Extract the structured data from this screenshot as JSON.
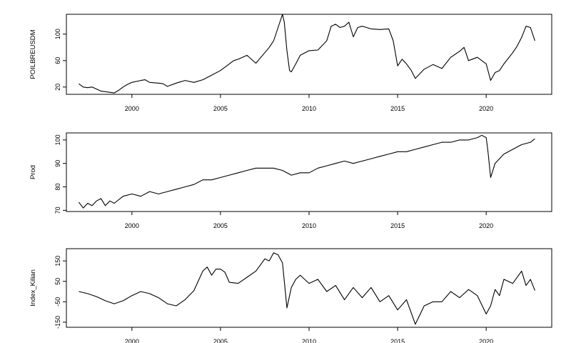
{
  "chart_data": [
    {
      "type": "line",
      "title": "",
      "xlabel": "",
      "ylabel": "POILBREUSDM",
      "xlim": [
        1996.3,
        2023.7
      ],
      "ylim": [
        9,
        130
      ],
      "xticks": [
        2000,
        2005,
        2010,
        2015,
        2020
      ],
      "xtick_labels": [
        "2000",
        "2005",
        "2010",
        "2015",
        "2020"
      ],
      "yticks": [
        20,
        60,
        100
      ],
      "ytick_labels": [
        "20",
        "60",
        "100"
      ],
      "grid": false,
      "series": [
        {
          "x": [
            1997.0,
            1997.25,
            1997.5,
            1997.75,
            1998.0,
            1998.25,
            1998.5,
            1998.75,
            1999.0,
            1999.25,
            1999.5,
            1999.75,
            2000.0,
            2000.5,
            2000.75,
            2001.0,
            2001.5,
            2001.75,
            2002.0,
            2002.5,
            2003.0,
            2003.5,
            2004.0,
            2004.5,
            2005.0,
            2005.5,
            2005.75,
            2006.0,
            2006.5,
            2007.0,
            2007.5,
            2007.75,
            2008.0,
            2008.25,
            2008.5,
            2008.6,
            2008.75,
            2008.9,
            2009.0,
            2009.25,
            2009.5,
            2010.0,
            2010.5,
            2011.0,
            2011.25,
            2011.5,
            2011.75,
            2012.0,
            2012.25,
            2012.5,
            2012.75,
            2013.0,
            2013.5,
            2014.0,
            2014.5,
            2014.75,
            2015.0,
            2015.25,
            2015.5,
            2015.75,
            2016.0,
            2016.5,
            2017.0,
            2017.5,
            2018.0,
            2018.5,
            2018.75,
            2019.0,
            2019.5,
            2019.75,
            2020.0,
            2020.25,
            2020.5,
            2020.75,
            2021.0,
            2021.5,
            2021.75,
            2022.0,
            2022.25,
            2022.5,
            2022.75
          ],
          "y": [
            25,
            20,
            19,
            20,
            17,
            14,
            13,
            12,
            11,
            15,
            20,
            24,
            27,
            30,
            31,
            27,
            26,
            25,
            21,
            26,
            30,
            27,
            31,
            38,
            45,
            55,
            60,
            62,
            68,
            56,
            72,
            80,
            90,
            110,
            130,
            118,
            75,
            45,
            43,
            55,
            68,
            75,
            76,
            90,
            112,
            115,
            110,
            112,
            118,
            96,
            110,
            112,
            108,
            107,
            108,
            90,
            52,
            62,
            55,
            46,
            33,
            47,
            54,
            48,
            65,
            74,
            80,
            60,
            65,
            60,
            55,
            30,
            42,
            45,
            55,
            72,
            82,
            95,
            112,
            110,
            90
          ]
        }
      ]
    },
    {
      "type": "line",
      "title": "",
      "xlabel": "",
      "ylabel": "Prod",
      "xlim": [
        1996.3,
        2023.7
      ],
      "ylim": [
        69.5,
        103
      ],
      "xticks": [
        2000,
        2005,
        2010,
        2015,
        2020
      ],
      "xtick_labels": [
        "2000",
        "2005",
        "2010",
        "2015",
        "2020"
      ],
      "yticks": [
        70,
        80,
        90,
        100
      ],
      "ytick_labels": [
        "70",
        "80",
        "90",
        "100"
      ],
      "grid": false,
      "series": [
        {
          "x": [
            1997.0,
            1997.25,
            1997.5,
            1997.75,
            1998.0,
            1998.25,
            1998.5,
            1998.75,
            1999.0,
            1999.5,
            2000.0,
            2000.5,
            2001.0,
            2001.5,
            2002.0,
            2002.5,
            2003.0,
            2003.5,
            2004.0,
            2004.5,
            2005.0,
            2005.5,
            2006.0,
            2006.5,
            2007.0,
            2007.5,
            2008.0,
            2008.5,
            2009.0,
            2009.5,
            2010.0,
            2010.5,
            2011.0,
            2011.5,
            2012.0,
            2012.5,
            2013.0,
            2013.5,
            2014.0,
            2014.5,
            2015.0,
            2015.5,
            2016.0,
            2016.5,
            2017.0,
            2017.5,
            2018.0,
            2018.5,
            2019.0,
            2019.5,
            2019.75,
            2020.0,
            2020.1,
            2020.25,
            2020.5,
            2020.75,
            2021.0,
            2021.5,
            2022.0,
            2022.5,
            2022.75
          ],
          "y": [
            73.5,
            71,
            73,
            72,
            74,
            75,
            72,
            74,
            73,
            76,
            77,
            76,
            78,
            77,
            78,
            79,
            80,
            81,
            83,
            83,
            84,
            85,
            86,
            87,
            88,
            88,
            88,
            87,
            85,
            86,
            86,
            88,
            89,
            90,
            91,
            90,
            91,
            92,
            93,
            94,
            95,
            95,
            96,
            97,
            98,
            99,
            99,
            100,
            100,
            101,
            102,
            101,
            95,
            84,
            90,
            92,
            94,
            96,
            98,
            99,
            100.5
          ]
        }
      ]
    },
    {
      "type": "line",
      "title": "",
      "xlabel": "",
      "ylabel": "Index_Kilian",
      "xlim": [
        1996.3,
        2023.7
      ],
      "ylim": [
        -175,
        210
      ],
      "xticks": [
        2000,
        2005,
        2010,
        2015,
        2020
      ],
      "xtick_labels": [
        "2000",
        "2005",
        "2010",
        "2015",
        "2020"
      ],
      "yticks": [
        -150,
        -50,
        50,
        150
      ],
      "ytick_labels": [
        "-150",
        "-50",
        "50",
        "150"
      ],
      "grid": false,
      "series": [
        {
          "x": [
            1997.0,
            1997.5,
            1998.0,
            1998.5,
            1999.0,
            1999.5,
            2000.0,
            2000.5,
            2001.0,
            2001.5,
            2002.0,
            2002.5,
            2003.0,
            2003.5,
            2004.0,
            2004.25,
            2004.5,
            2004.75,
            2005.0,
            2005.25,
            2005.5,
            2006.0,
            2006.5,
            2007.0,
            2007.5,
            2007.75,
            2008.0,
            2008.25,
            2008.5,
            2008.75,
            2009.0,
            2009.25,
            2009.5,
            2010.0,
            2010.5,
            2011.0,
            2011.5,
            2012.0,
            2012.5,
            2013.0,
            2013.5,
            2014.0,
            2014.5,
            2015.0,
            2015.5,
            2016.0,
            2016.5,
            2017.0,
            2017.5,
            2018.0,
            2018.5,
            2019.0,
            2019.5,
            2020.0,
            2020.25,
            2020.5,
            2020.75,
            2021.0,
            2021.5,
            2022.0,
            2022.25,
            2022.5,
            2022.75
          ],
          "y": [
            0,
            -10,
            -25,
            -45,
            -60,
            -45,
            -20,
            0,
            -10,
            -30,
            -60,
            -70,
            -40,
            5,
            100,
            120,
            80,
            110,
            110,
            95,
            45,
            40,
            70,
            100,
            160,
            150,
            190,
            180,
            140,
            -80,
            20,
            60,
            80,
            40,
            60,
            0,
            30,
            -40,
            20,
            -30,
            20,
            -50,
            -20,
            -90,
            -40,
            -160,
            -70,
            -50,
            -50,
            0,
            -30,
            10,
            -20,
            -110,
            -70,
            10,
            -20,
            60,
            40,
            100,
            30,
            60,
            5
          ]
        }
      ]
    }
  ]
}
